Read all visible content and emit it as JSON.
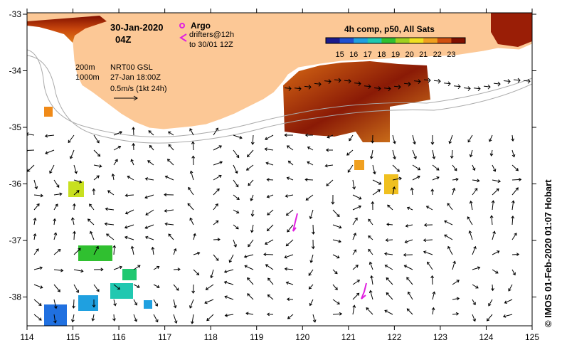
{
  "title": {
    "date": "30-Jan-2020",
    "hour": "04Z"
  },
  "legend": {
    "argo_label": "Argo",
    "drifters_label": "drifters@12h",
    "drifters_range": "to 30/01 12Z",
    "depth_200": "200m",
    "depth_1000": "1000m",
    "model_line1": "NRT00 GSL",
    "model_line2": "27-Jan 18:00Z",
    "scale_label": "0.5m/s (1kt 24h)"
  },
  "colorbar": {
    "title": "4h comp, p50, All Sats",
    "ticks": [
      "15",
      "16",
      "17",
      "18",
      "19",
      "20",
      "21",
      "22",
      "23"
    ],
    "colors": [
      "#1a1a8c",
      "#2050d0",
      "#1fa0e0",
      "#20c8b0",
      "#30c030",
      "#a0d020",
      "#f0e020",
      "#f0a020",
      "#d05010",
      "#801000"
    ]
  },
  "axes": {
    "x_ticks": [
      "114",
      "115",
      "116",
      "117",
      "118",
      "119",
      "120",
      "121",
      "122",
      "123",
      "124",
      "125"
    ],
    "y_ticks": [
      "-33",
      "-34",
      "-35",
      "-36",
      "-37",
      "-38"
    ]
  },
  "colors": {
    "land": "#fcc896",
    "drifter": "#e020e0",
    "argo": "#e020e0"
  },
  "credit": "© IMOS 01-Feb-2020 01:07 Hobart"
}
